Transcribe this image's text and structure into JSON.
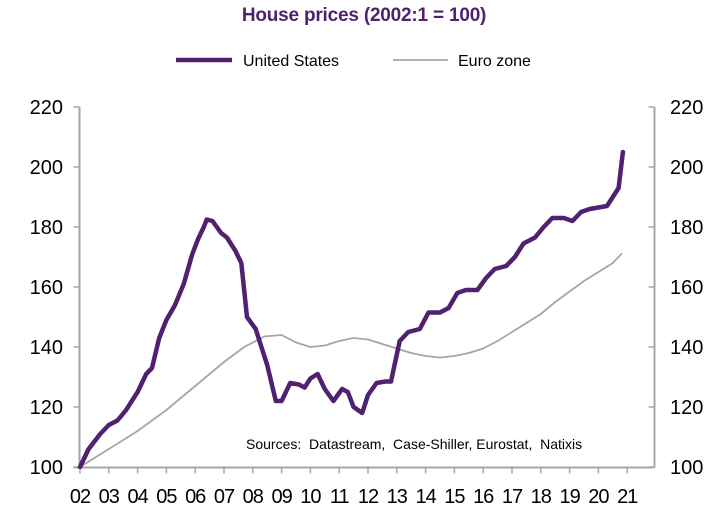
{
  "chart_data": {
    "type": "line",
    "title": "House prices (2002:1 = 100)",
    "xlabel": "",
    "ylabel": "",
    "xlim": [
      2002,
      2021.9
    ],
    "ylim": [
      100,
      220
    ],
    "yticks": [
      100,
      120,
      140,
      160,
      180,
      200,
      220
    ],
    "ytick_labels": [
      "100",
      "120",
      "140",
      "160",
      "180",
      "200",
      "220"
    ],
    "xticks": [
      2002,
      2003,
      2004,
      2005,
      2006,
      2007,
      2008,
      2009,
      2010,
      2011,
      2012,
      2013,
      2014,
      2015,
      2016,
      2017,
      2018,
      2019,
      2020,
      2021
    ],
    "xtick_labels": [
      "02",
      "03",
      "04",
      "05",
      "06",
      "07",
      "08",
      "09",
      "10",
      "11",
      "12",
      "13",
      "14",
      "15",
      "16",
      "17",
      "18",
      "19",
      "20",
      "21"
    ],
    "grid": false,
    "legend_position": "top",
    "annotation": "Sources:  Datastream,  Case-Shiller, Eurostat,  Natixis",
    "series": [
      {
        "name": "United States",
        "color": "#4f2170",
        "x": [
          2002.0,
          2002.3,
          2002.7,
          2003.0,
          2003.3,
          2003.6,
          2004.0,
          2004.3,
          2004.5,
          2004.75,
          2005.0,
          2005.3,
          2005.6,
          2005.9,
          2006.1,
          2006.3,
          2006.4,
          2006.6,
          2006.9,
          2007.1,
          2007.4,
          2007.6,
          2007.8,
          2008.1,
          2008.3,
          2008.5,
          2008.8,
          2009.0,
          2009.3,
          2009.6,
          2009.8,
          2010.0,
          2010.25,
          2010.5,
          2010.8,
          2011.1,
          2011.3,
          2011.5,
          2011.8,
          2012.0,
          2012.3,
          2012.6,
          2012.8,
          2013.1,
          2013.4,
          2013.8,
          2014.1,
          2014.5,
          2014.8,
          2015.1,
          2015.4,
          2015.8,
          2016.1,
          2016.4,
          2016.8,
          2017.1,
          2017.4,
          2017.8,
          2018.1,
          2018.4,
          2018.8,
          2019.1,
          2019.4,
          2019.7,
          2020.0,
          2020.3,
          2020.5,
          2020.7,
          2020.85
        ],
        "values": [
          100,
          106,
          111,
          114,
          115.5,
          119,
          125,
          131,
          133,
          143,
          149,
          154,
          161,
          171,
          176,
          180,
          182.5,
          182,
          178,
          176.5,
          172,
          168,
          150,
          146,
          140,
          134,
          122,
          122,
          128,
          127.5,
          126.5,
          129.5,
          131,
          126,
          122,
          126,
          125,
          120,
          118,
          124,
          128,
          128.5,
          128.5,
          142,
          145,
          146,
          151.5,
          151.5,
          153,
          158,
          159,
          159,
          163,
          166,
          167,
          170,
          174.5,
          176.5,
          180,
          183,
          183,
          182,
          185,
          186,
          186.5,
          187,
          190,
          193,
          205
        ]
      },
      {
        "name": "Euro zone",
        "color": "#a6a6a6",
        "x": [
          2002.0,
          2003.0,
          2004.0,
          2005.0,
          2006.0,
          2007.0,
          2007.7,
          2008.4,
          2009.0,
          2009.5,
          2010.0,
          2010.5,
          2011.0,
          2011.5,
          2012.0,
          2012.5,
          2013.0,
          2013.5,
          2014.0,
          2014.5,
          2015.0,
          2015.5,
          2016.0,
          2016.5,
          2017.0,
          2017.5,
          2018.0,
          2018.5,
          2019.0,
          2019.5,
          2020.0,
          2020.5,
          2020.8
        ],
        "values": [
          100,
          106,
          112,
          119,
          127,
          135,
          140,
          143.5,
          144,
          141.5,
          140,
          140.5,
          142,
          143,
          142.5,
          141,
          139.5,
          138,
          137,
          136.5,
          137,
          138,
          139.5,
          142,
          145,
          148,
          151,
          155,
          158.5,
          162,
          165,
          168,
          171
        ]
      }
    ]
  },
  "legend": {
    "items": [
      {
        "label": "United States",
        "color": "#4f2170"
      },
      {
        "label": "Euro zone",
        "color": "#a6a6a6"
      }
    ]
  },
  "colors": {
    "title": "#4f2170",
    "axis": "#a6a6a6"
  }
}
